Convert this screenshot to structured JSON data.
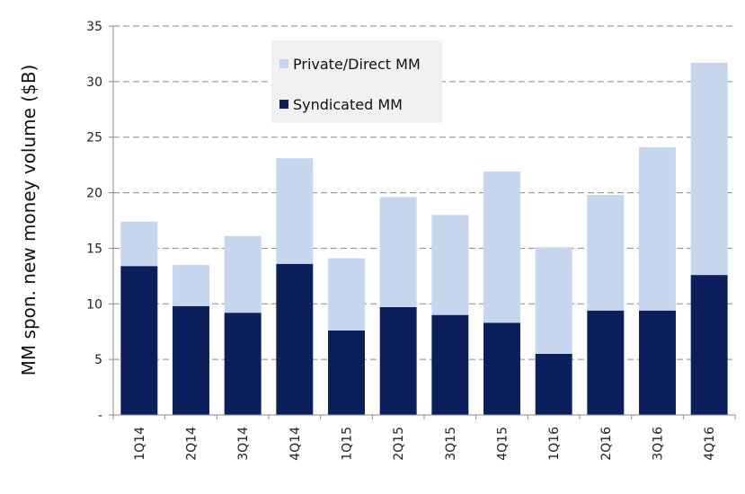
{
  "chart_data": {
    "type": "bar",
    "stacked": true,
    "categories": [
      "1Q14",
      "2Q14",
      "3Q14",
      "4Q14",
      "1Q15",
      "2Q15",
      "3Q15",
      "4Q15",
      "1Q16",
      "2Q16",
      "3Q16",
      "4Q16"
    ],
    "series": [
      {
        "name": "Syndicated MM",
        "color": "#0a1f5c",
        "values": [
          13.4,
          9.8,
          9.2,
          13.6,
          7.6,
          9.7,
          9.0,
          8.3,
          5.5,
          9.4,
          9.4,
          12.6
        ]
      },
      {
        "name": "Private/Direct MM",
        "color": "#c5d6ee",
        "values": [
          4.0,
          3.7,
          6.9,
          9.5,
          6.5,
          9.9,
          9.0,
          13.6,
          9.6,
          10.4,
          14.7,
          19.1
        ]
      }
    ],
    "ylabel": "MM spon. new money volume ($B)",
    "xlabel": "",
    "ylim": [
      0,
      35
    ],
    "yticks": [
      "-",
      "5",
      "10",
      "15",
      "20",
      "25",
      "30",
      "35"
    ],
    "grid": true,
    "legend_position": "top-left",
    "legend_order": [
      "Private/Direct MM",
      "Syndicated MM"
    ]
  }
}
